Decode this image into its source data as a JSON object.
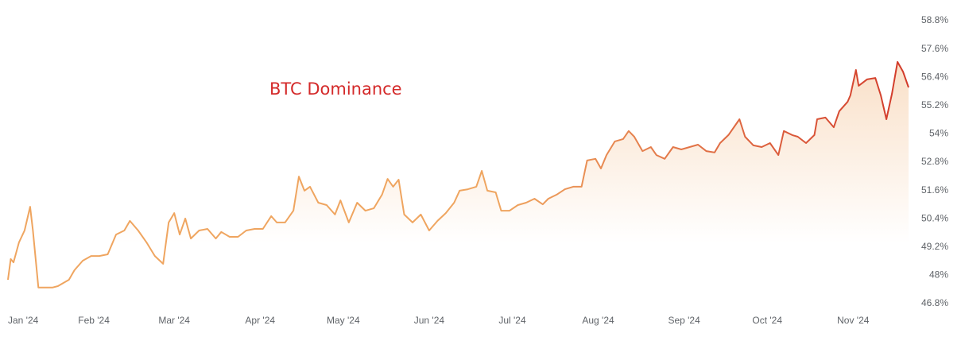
{
  "chart_data": {
    "type": "line",
    "title": "BTC Dominance",
    "x": [
      0,
      1,
      2,
      4,
      6,
      8,
      9,
      11,
      13,
      16,
      18,
      22,
      24,
      27,
      30,
      33,
      36,
      39,
      42,
      44,
      47,
      50,
      53,
      56,
      58,
      60,
      62,
      64,
      66,
      69,
      72,
      75,
      77,
      80,
      83,
      86,
      89,
      92,
      95,
      97,
      100,
      103,
      105,
      107,
      109,
      112,
      115,
      118,
      120,
      123,
      126,
      129,
      132,
      135,
      137,
      139,
      141,
      143,
      146,
      149,
      152,
      155,
      158,
      161,
      163,
      166,
      169,
      171,
      173,
      176,
      178,
      181,
      184,
      187,
      190,
      193,
      195,
      198,
      201,
      204,
      207,
      209,
      212,
      214,
      216,
      219,
      222,
      224,
      226,
      229,
      232,
      234,
      237,
      240,
      243,
      246,
      249,
      252,
      255,
      257,
      260,
      264,
      266,
      269,
      272,
      275,
      278,
      280,
      283,
      285,
      288,
      291,
      292,
      295,
      298,
      300,
      303,
      304,
      306,
      307,
      310,
      313,
      315,
      317,
      319,
      321,
      323,
      325
    ],
    "series": [
      {
        "name": "BTC Dominance",
        "color": "#efa560",
        "gradient_to": "#d23a2a",
        "values": [
          47.81,
          48.69,
          48.55,
          49.4,
          49.9,
          50.91,
          49.9,
          47.48,
          47.48,
          47.48,
          47.54,
          47.81,
          48.22,
          48.62,
          48.82,
          48.82,
          48.89,
          49.73,
          49.9,
          50.31,
          49.9,
          49.4,
          48.82,
          48.49,
          50.24,
          50.64,
          49.73,
          50.41,
          49.56,
          49.9,
          49.97,
          49.56,
          49.84,
          49.63,
          49.63,
          49.9,
          49.97,
          49.97,
          50.51,
          50.24,
          50.24,
          50.74,
          52.19,
          51.59,
          51.76,
          51.08,
          50.98,
          50.58,
          51.18,
          50.24,
          51.08,
          50.74,
          50.84,
          51.42,
          52.09,
          51.76,
          52.06,
          50.58,
          50.24,
          50.58,
          49.9,
          50.31,
          50.64,
          51.08,
          51.59,
          51.65,
          51.76,
          52.43,
          51.59,
          51.52,
          50.74,
          50.74,
          50.98,
          51.08,
          51.25,
          51.01,
          51.25,
          51.42,
          51.65,
          51.76,
          51.76,
          52.87,
          52.94,
          52.53,
          53.1,
          53.68,
          53.78,
          54.12,
          53.88,
          53.27,
          53.44,
          53.1,
          52.94,
          53.44,
          53.34,
          53.44,
          53.54,
          53.27,
          53.21,
          53.61,
          53.95,
          54.62,
          53.88,
          53.51,
          53.44,
          53.61,
          53.1,
          54.12,
          53.95,
          53.88,
          53.61,
          53.95,
          54.62,
          54.69,
          54.28,
          54.96,
          55.36,
          55.63,
          56.71,
          56.04,
          56.31,
          56.37,
          55.63,
          54.62,
          55.7,
          57.05,
          56.64,
          55.97
        ]
      }
    ],
    "xlim": [
      0,
      325
    ],
    "xticks": [
      {
        "value": 0,
        "label": "Jan '24"
      },
      {
        "value": 31,
        "label": "Feb '24"
      },
      {
        "value": 60,
        "label": "Mar '24"
      },
      {
        "value": 91,
        "label": "Apr '24"
      },
      {
        "value": 121,
        "label": "May '24"
      },
      {
        "value": 152,
        "label": "Jun '24"
      },
      {
        "value": 182,
        "label": "Jul '24"
      },
      {
        "value": 213,
        "label": "Aug '24"
      },
      {
        "value": 244,
        "label": "Sep '24"
      },
      {
        "value": 274,
        "label": "Oct '24"
      },
      {
        "value": 305,
        "label": "Nov '24"
      }
    ],
    "ylim": [
      46.8,
      58.8
    ],
    "yticks": [
      {
        "value": 46.8,
        "label": "46.8%"
      },
      {
        "value": 48,
        "label": "48%"
      },
      {
        "value": 49.2,
        "label": "49.2%"
      },
      {
        "value": 50.4,
        "label": "50.4%"
      },
      {
        "value": 51.6,
        "label": "51.6%"
      },
      {
        "value": 52.8,
        "label": "52.8%"
      },
      {
        "value": 54,
        "label": "54%"
      },
      {
        "value": 55.2,
        "label": "55.2%"
      },
      {
        "value": 56.4,
        "label": "56.4%"
      },
      {
        "value": 57.6,
        "label": "57.6%"
      },
      {
        "value": 58.8,
        "label": "58.8%"
      }
    ],
    "grid": false
  }
}
